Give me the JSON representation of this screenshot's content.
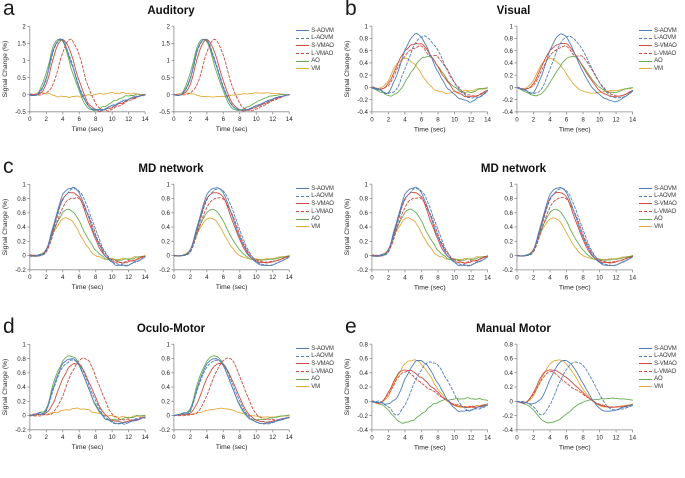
{
  "figure_name": "Signal change time courses by system",
  "axis_color": "#8a8a8a",
  "text_color": "#222222",
  "chart_data": [
    {
      "panel_letter": "a",
      "title": "Auditory",
      "type": "line",
      "xlabel": "Time (sec)",
      "ylabel": "Signal Change (%)",
      "xlim": [
        0,
        14
      ],
      "ylim": [
        -0.5,
        2
      ],
      "xticks": [
        0,
        2,
        4,
        6,
        8,
        10,
        12,
        14
      ],
      "yticks": [
        -0.5,
        0,
        0.5,
        1,
        1.5,
        2
      ],
      "x": [
        0,
        1,
        2,
        3,
        4,
        5,
        6,
        7,
        8,
        9,
        10,
        11,
        12,
        13,
        14
      ],
      "legend_position": "right",
      "series": [
        {
          "name": "S-AOVM",
          "color": "#4f7db8",
          "dash": false,
          "values": [
            0,
            0.02,
            0.5,
            1.42,
            1.58,
            0.95,
            0.2,
            -0.3,
            -0.44,
            -0.42,
            -0.32,
            -0.22,
            -0.12,
            -0.05,
            0
          ]
        },
        {
          "name": "L-AOVM",
          "color": "#4f7db8",
          "dash": true,
          "values": [
            0,
            0.02,
            0.45,
            1.38,
            1.6,
            1.0,
            0.25,
            -0.28,
            -0.45,
            -0.43,
            -0.33,
            -0.23,
            -0.13,
            -0.05,
            0
          ]
        },
        {
          "name": "S-VMAO",
          "color": "#cf4a3e",
          "dash": false,
          "values": [
            0,
            0.01,
            0.3,
            1.2,
            1.62,
            1.2,
            0.4,
            -0.2,
            -0.44,
            -0.45,
            -0.36,
            -0.26,
            -0.15,
            -0.06,
            0
          ]
        },
        {
          "name": "L-VMAO",
          "color": "#cf4a3e",
          "dash": true,
          "values": [
            0,
            0,
            0.05,
            0.4,
            1.25,
            1.62,
            1.15,
            0.3,
            -0.25,
            -0.46,
            -0.42,
            -0.3,
            -0.18,
            -0.08,
            0
          ]
        },
        {
          "name": "AO",
          "color": "#67ad52",
          "dash": false,
          "values": [
            0,
            0.04,
            0.65,
            1.5,
            1.55,
            0.8,
            0.1,
            -0.38,
            -0.45,
            -0.35,
            -0.22,
            -0.1,
            -0.03,
            0,
            0
          ]
        },
        {
          "name": "VM",
          "color": "#e2a93b",
          "dash": false,
          "values": [
            0,
            0.05,
            0.04,
            -0.03,
            -0.06,
            -0.06,
            -0.05,
            -0.02,
            0.01,
            0.03,
            0.05,
            0.05,
            0.04,
            0.02,
            0
          ]
        }
      ]
    },
    {
      "panel_letter": "b",
      "title": "Visual",
      "type": "line",
      "xlabel": "Time (sec)",
      "ylabel": "Signal Change (%)",
      "xlim": [
        0,
        14
      ],
      "ylim": [
        -0.4,
        1
      ],
      "xticks": [
        0,
        2,
        4,
        6,
        8,
        10,
        12,
        14
      ],
      "yticks": [
        -0.4,
        -0.2,
        0,
        0.2,
        0.4,
        0.6,
        0.8,
        1
      ],
      "x": [
        0,
        1,
        2,
        3,
        4,
        5,
        6,
        7,
        8,
        9,
        10,
        11,
        12,
        13,
        14
      ],
      "legend_position": "right",
      "series": [
        {
          "name": "S-AOVM",
          "color": "#4f7db8",
          "dash": false,
          "values": [
            0,
            -0.05,
            -0.08,
            0.2,
            0.6,
            0.85,
            0.82,
            0.55,
            0.25,
            0.02,
            -0.12,
            -0.2,
            -0.23,
            -0.16,
            -0.05
          ]
        },
        {
          "name": "L-AOVM",
          "color": "#4f7db8",
          "dash": true,
          "values": [
            0,
            -0.04,
            -0.1,
            -0.02,
            0.3,
            0.65,
            0.83,
            0.78,
            0.6,
            0.33,
            0.08,
            -0.1,
            -0.17,
            -0.15,
            -0.07
          ]
        },
        {
          "name": "S-VMAO",
          "color": "#cf4a3e",
          "dash": false,
          "values": [
            0,
            -0.03,
            0.06,
            0.35,
            0.6,
            0.7,
            0.71,
            0.55,
            0.33,
            0.12,
            -0.05,
            -0.13,
            -0.15,
            -0.12,
            -0.05
          ]
        },
        {
          "name": "L-VMAO",
          "color": "#cf4a3e",
          "dash": true,
          "values": [
            0,
            -0.02,
            0.03,
            0.28,
            0.52,
            0.63,
            0.67,
            0.52,
            0.5,
            0.3,
            0.08,
            -0.07,
            -0.14,
            -0.12,
            -0.06
          ]
        },
        {
          "name": "AO",
          "color": "#67ad52",
          "dash": false,
          "values": [
            0,
            -0.07,
            -0.13,
            -0.1,
            0.08,
            0.3,
            0.47,
            0.5,
            0.35,
            0.15,
            0,
            -0.07,
            -0.08,
            -0.03,
            0
          ]
        },
        {
          "name": "VM",
          "color": "#e2a93b",
          "dash": false,
          "values": [
            0,
            -0.02,
            0.12,
            0.38,
            0.47,
            0.4,
            0.22,
            0.03,
            -0.06,
            -0.09,
            -0.08,
            -0.06,
            -0.05,
            -0.03,
            -0.01
          ]
        }
      ]
    },
    {
      "panel_letter": "c",
      "title": "MD network",
      "type": "line",
      "xlabel": "Time (sec)",
      "ylabel": "Signal Change (%)",
      "xlim": [
        0,
        14
      ],
      "ylim": [
        -0.2,
        1
      ],
      "xticks": [
        0,
        2,
        4,
        6,
        8,
        10,
        12,
        14
      ],
      "yticks": [
        -0.2,
        0,
        0.2,
        0.4,
        0.6,
        0.8,
        1
      ],
      "x": [
        0,
        1,
        2,
        3,
        4,
        5,
        6,
        7,
        8,
        9,
        10,
        11,
        12,
        13,
        14
      ],
      "legend_position": "right",
      "series": [
        {
          "name": "S-AOVM",
          "color": "#4f7db8",
          "dash": false,
          "values": [
            0,
            0,
            0.08,
            0.48,
            0.85,
            0.95,
            0.88,
            0.58,
            0.26,
            0.03,
            -0.1,
            -0.14,
            -0.13,
            -0.08,
            -0.02
          ]
        },
        {
          "name": "L-AOVM",
          "color": "#4f7db8",
          "dash": true,
          "values": [
            0,
            0,
            0.06,
            0.42,
            0.78,
            0.92,
            0.91,
            0.68,
            0.36,
            0.08,
            -0.08,
            -0.13,
            -0.13,
            -0.08,
            -0.02
          ]
        },
        {
          "name": "S-VMAO",
          "color": "#cf4a3e",
          "dash": false,
          "values": [
            0,
            0,
            0.08,
            0.45,
            0.8,
            0.88,
            0.82,
            0.52,
            0.22,
            0.01,
            -0.08,
            -0.1,
            -0.09,
            -0.05,
            -0.01
          ]
        },
        {
          "name": "L-VMAO",
          "color": "#cf4a3e",
          "dash": true,
          "values": [
            0,
            0,
            0.05,
            0.36,
            0.68,
            0.8,
            0.79,
            0.6,
            0.3,
            0.05,
            -0.06,
            -0.09,
            -0.08,
            -0.05,
            -0.01
          ]
        },
        {
          "name": "AO",
          "color": "#67ad52",
          "dash": false,
          "values": [
            0,
            0,
            0.08,
            0.38,
            0.6,
            0.64,
            0.48,
            0.25,
            0.08,
            -0.03,
            -0.06,
            -0.06,
            -0.05,
            -0.03,
            0
          ]
        },
        {
          "name": "VM",
          "color": "#e2a93b",
          "dash": false,
          "values": [
            0,
            0,
            0.09,
            0.35,
            0.51,
            0.5,
            0.32,
            0.12,
            0,
            -0.04,
            -0.05,
            -0.05,
            -0.04,
            -0.02,
            0
          ]
        }
      ]
    },
    {
      "panel_letter": "",
      "title": "MD network",
      "type": "line",
      "xlabel": "Time (sec)",
      "ylabel": "Signal Change (%)",
      "xlim": [
        0,
        14
      ],
      "ylim": [
        -0.2,
        1
      ],
      "xticks": [
        0,
        2,
        4,
        6,
        8,
        10,
        12,
        14
      ],
      "yticks": [
        -0.2,
        0,
        0.2,
        0.4,
        0.6,
        0.8,
        1
      ],
      "x": [
        0,
        1,
        2,
        3,
        4,
        5,
        6,
        7,
        8,
        9,
        10,
        11,
        12,
        13,
        14
      ],
      "legend_position": "right",
      "series": [
        {
          "name": "S-AOVM",
          "color": "#4f7db8",
          "dash": false,
          "values": [
            0,
            0,
            0.08,
            0.48,
            0.85,
            0.95,
            0.88,
            0.58,
            0.26,
            0.03,
            -0.1,
            -0.14,
            -0.13,
            -0.08,
            -0.02
          ]
        },
        {
          "name": "L-AOVM",
          "color": "#4f7db8",
          "dash": true,
          "values": [
            0,
            0,
            0.06,
            0.42,
            0.78,
            0.92,
            0.91,
            0.68,
            0.36,
            0.08,
            -0.08,
            -0.13,
            -0.13,
            -0.08,
            -0.02
          ]
        },
        {
          "name": "S-VMAO",
          "color": "#cf4a3e",
          "dash": false,
          "values": [
            0,
            0,
            0.08,
            0.45,
            0.8,
            0.88,
            0.82,
            0.52,
            0.22,
            0.01,
            -0.08,
            -0.1,
            -0.09,
            -0.05,
            -0.01
          ]
        },
        {
          "name": "L-VMAO",
          "color": "#cf4a3e",
          "dash": true,
          "values": [
            0,
            0,
            0.05,
            0.36,
            0.68,
            0.8,
            0.79,
            0.6,
            0.3,
            0.05,
            -0.06,
            -0.09,
            -0.08,
            -0.05,
            -0.01
          ]
        },
        {
          "name": "AO",
          "color": "#67ad52",
          "dash": false,
          "values": [
            0,
            0,
            0.08,
            0.38,
            0.6,
            0.64,
            0.48,
            0.25,
            0.08,
            -0.03,
            -0.06,
            -0.06,
            -0.05,
            -0.03,
            0
          ]
        },
        {
          "name": "VM",
          "color": "#e2a93b",
          "dash": false,
          "values": [
            0,
            0,
            0.09,
            0.35,
            0.51,
            0.5,
            0.32,
            0.12,
            0,
            -0.04,
            -0.05,
            -0.05,
            -0.04,
            -0.02,
            0
          ]
        }
      ]
    },
    {
      "panel_letter": "d",
      "title": "Oculo-Motor",
      "type": "line",
      "xlabel": "Time (sec)",
      "ylabel": "Signal Change (%)",
      "xlim": [
        0,
        14
      ],
      "ylim": [
        -0.2,
        1
      ],
      "xticks": [
        0,
        2,
        4,
        6,
        8,
        10,
        12,
        14
      ],
      "yticks": [
        -0.2,
        0,
        0.2,
        0.4,
        0.6,
        0.8,
        1
      ],
      "x": [
        0,
        1,
        2,
        3,
        4,
        5,
        6,
        7,
        8,
        9,
        10,
        11,
        12,
        13,
        14
      ],
      "legend_position": "right",
      "series": [
        {
          "name": "S-AOVM",
          "color": "#4f7db8",
          "dash": false,
          "values": [
            0,
            0.03,
            0.08,
            0.45,
            0.72,
            0.8,
            0.7,
            0.42,
            0.15,
            -0.02,
            -0.09,
            -0.11,
            -0.09,
            -0.05,
            -0.02
          ]
        },
        {
          "name": "L-AOVM",
          "color": "#4f7db8",
          "dash": true,
          "values": [
            0,
            0.02,
            0.06,
            0.42,
            0.68,
            0.77,
            0.73,
            0.48,
            0.2,
            0,
            -0.09,
            -0.12,
            -0.1,
            -0.06,
            -0.03
          ]
        },
        {
          "name": "S-VMAO",
          "color": "#cf4a3e",
          "dash": false,
          "values": [
            0,
            0.02,
            0.03,
            0.22,
            0.52,
            0.7,
            0.72,
            0.52,
            0.25,
            0.03,
            -0.06,
            -0.09,
            -0.08,
            -0.06,
            -0.03
          ]
        },
        {
          "name": "L-VMAO",
          "color": "#cf4a3e",
          "dash": true,
          "values": [
            0,
            0,
            0.01,
            0.06,
            0.28,
            0.58,
            0.77,
            0.79,
            0.55,
            0.25,
            0.02,
            -0.05,
            -0.06,
            -0.05,
            -0.02
          ]
        },
        {
          "name": "AO",
          "color": "#67ad52",
          "dash": false,
          "values": [
            0,
            0.03,
            0.1,
            0.5,
            0.76,
            0.84,
            0.72,
            0.42,
            0.14,
            -0.03,
            -0.06,
            -0.05,
            -0.03,
            -0.01,
            0.01
          ]
        },
        {
          "name": "VM",
          "color": "#e2a93b",
          "dash": false,
          "values": [
            0,
            0.01,
            0.02,
            0.04,
            0.07,
            0.09,
            0.1,
            0.08,
            0.04,
            0.01,
            -0.01,
            -0.02,
            -0.02,
            -0.01,
            0
          ]
        }
      ]
    },
    {
      "panel_letter": "e",
      "title": "Manual Motor",
      "type": "line",
      "xlabel": "Time (sec)",
      "ylabel": "Signal Change (%)",
      "xlim": [
        0,
        14
      ],
      "ylim": [
        -0.4,
        0.8
      ],
      "xticks": [
        0,
        2,
        4,
        6,
        8,
        10,
        12,
        14
      ],
      "yticks": [
        -0.4,
        -0.2,
        0,
        0.2,
        0.4,
        0.6,
        0.8
      ],
      "x": [
        0,
        1,
        2,
        3,
        4,
        5,
        6,
        7,
        8,
        9,
        10,
        11,
        12,
        13,
        14
      ],
      "legend_position": "right",
      "series": [
        {
          "name": "S-AOVM",
          "color": "#4f7db8",
          "dash": false,
          "values": [
            0,
            -0.02,
            -0.03,
            0.05,
            0.3,
            0.52,
            0.57,
            0.45,
            0.25,
            0.05,
            -0.1,
            -0.14,
            -0.12,
            -0.08,
            -0.05
          ]
        },
        {
          "name": "L-AOVM",
          "color": "#4f7db8",
          "dash": true,
          "values": [
            0,
            -0.01,
            -0.08,
            -0.19,
            -0.05,
            0.22,
            0.45,
            0.55,
            0.5,
            0.32,
            0.1,
            -0.08,
            -0.12,
            -0.1,
            -0.06
          ]
        },
        {
          "name": "S-VMAO",
          "color": "#cf4a3e",
          "dash": false,
          "values": [
            0,
            -0.02,
            0.12,
            0.36,
            0.44,
            0.41,
            0.33,
            0.23,
            0.12,
            0.02,
            -0.05,
            -0.08,
            -0.08,
            -0.07,
            -0.05
          ]
        },
        {
          "name": "L-VMAO",
          "color": "#cf4a3e",
          "dash": true,
          "values": [
            0,
            -0.02,
            0.1,
            0.3,
            0.42,
            0.35,
            0.25,
            0.17,
            0.1,
            0.02,
            -0.04,
            -0.07,
            -0.08,
            -0.07,
            -0.05
          ]
        },
        {
          "name": "AO",
          "color": "#67ad52",
          "dash": false,
          "values": [
            0,
            -0.04,
            -0.12,
            -0.26,
            -0.3,
            -0.26,
            -0.18,
            -0.08,
            -0.01,
            0.02,
            0.03,
            0.04,
            0.04,
            0.03,
            0.02
          ]
        },
        {
          "name": "VM",
          "color": "#e2a93b",
          "dash": false,
          "values": [
            0,
            -0.02,
            0.08,
            0.33,
            0.52,
            0.58,
            0.52,
            0.36,
            0.17,
            0.02,
            -0.06,
            -0.08,
            -0.08,
            -0.06,
            -0.04
          ]
        }
      ]
    }
  ]
}
